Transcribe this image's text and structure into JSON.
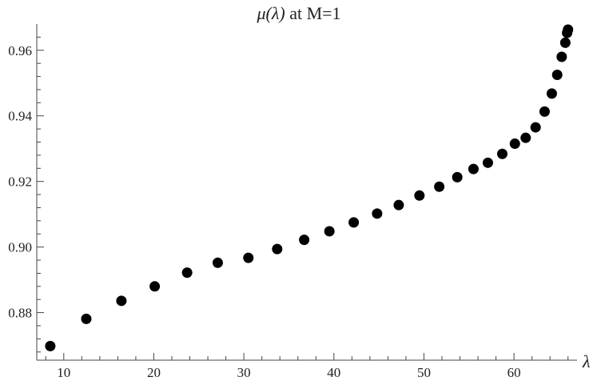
{
  "chart_data": {
    "type": "scatter",
    "title_math": "μ(λ)",
    "title_rest": " at M=1",
    "xlabel": "λ",
    "ylabel": "",
    "xlim": [
      7,
      67
    ],
    "ylim": [
      0.8655,
      0.968
    ],
    "x_ticks_major": [
      10,
      20,
      30,
      40,
      50,
      60
    ],
    "x_ticks_major_labels": [
      "10",
      "20",
      "30",
      "40",
      "50",
      "60"
    ],
    "x_ticks_minor": [
      8,
      12,
      14,
      16,
      18,
      22,
      24,
      26,
      28,
      32,
      34,
      36,
      38,
      42,
      44,
      46,
      48,
      52,
      54,
      56,
      58,
      62,
      64,
      66
    ],
    "y_ticks_major": [
      0.88,
      0.9,
      0.92,
      0.94,
      0.96
    ],
    "y_ticks_major_labels": [
      "0.88",
      "0.90",
      "0.92",
      "0.94",
      "0.96"
    ],
    "y_ticks_minor": [
      0.868,
      0.872,
      0.876,
      0.884,
      0.888,
      0.892,
      0.896,
      0.904,
      0.908,
      0.912,
      0.916,
      0.924,
      0.928,
      0.932,
      0.936,
      0.944,
      0.948,
      0.952,
      0.956,
      0.964
    ],
    "grid": false,
    "marker_color": "#000000",
    "points": [
      {
        "x": 8.5,
        "y": 0.8698
      },
      {
        "x": 12.5,
        "y": 0.8781
      },
      {
        "x": 16.4,
        "y": 0.8836
      },
      {
        "x": 20.1,
        "y": 0.888
      },
      {
        "x": 23.7,
        "y": 0.8922
      },
      {
        "x": 27.1,
        "y": 0.8952
      },
      {
        "x": 30.5,
        "y": 0.8967
      },
      {
        "x": 33.7,
        "y": 0.8994
      },
      {
        "x": 36.7,
        "y": 0.9022
      },
      {
        "x": 39.5,
        "y": 0.9048
      },
      {
        "x": 42.2,
        "y": 0.9075
      },
      {
        "x": 44.8,
        "y": 0.9102
      },
      {
        "x": 47.2,
        "y": 0.9128
      },
      {
        "x": 49.5,
        "y": 0.9157
      },
      {
        "x": 51.7,
        "y": 0.9184
      },
      {
        "x": 53.7,
        "y": 0.9213
      },
      {
        "x": 55.5,
        "y": 0.9238
      },
      {
        "x": 57.1,
        "y": 0.9257
      },
      {
        "x": 58.7,
        "y": 0.9284
      },
      {
        "x": 60.1,
        "y": 0.9315
      },
      {
        "x": 61.3,
        "y": 0.9333
      },
      {
        "x": 62.4,
        "y": 0.9365
      },
      {
        "x": 63.4,
        "y": 0.9413
      },
      {
        "x": 64.2,
        "y": 0.9468
      },
      {
        "x": 64.8,
        "y": 0.9525
      },
      {
        "x": 65.3,
        "y": 0.958
      },
      {
        "x": 65.7,
        "y": 0.9623
      },
      {
        "x": 65.9,
        "y": 0.9653
      },
      {
        "x": 66.0,
        "y": 0.9663
      }
    ]
  }
}
